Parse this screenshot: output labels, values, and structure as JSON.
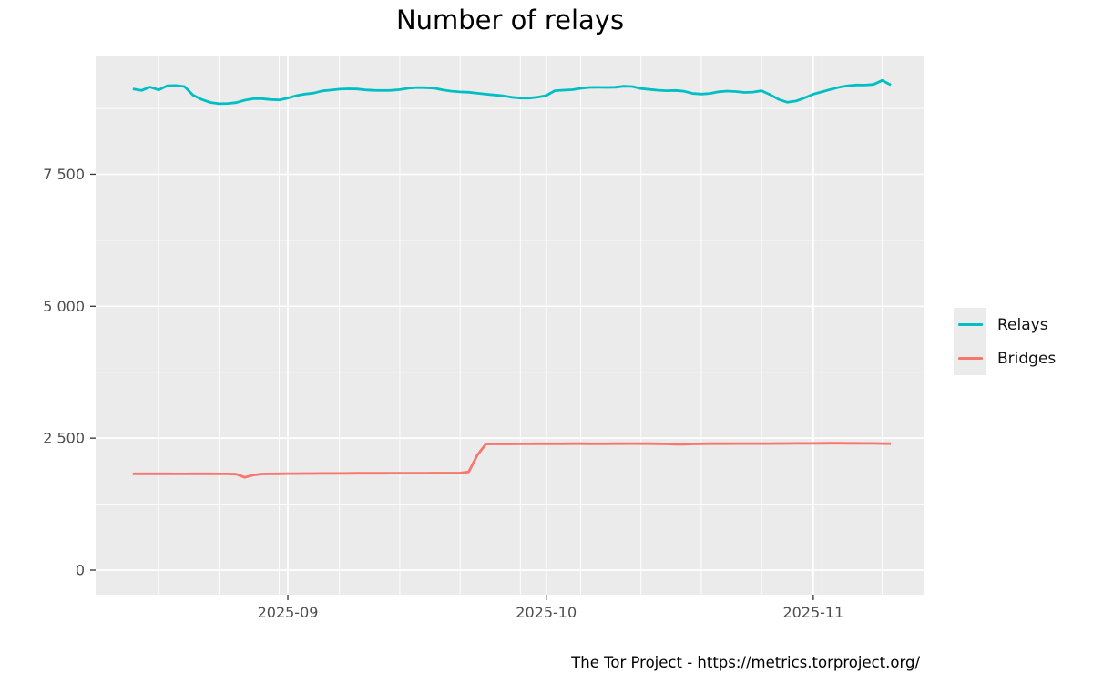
{
  "chart_data": {
    "type": "line",
    "title": "Number of relays",
    "caption": "The Tor Project - https://metrics.torproject.org/",
    "x_dates": {
      "start": "2025-08-14",
      "end": "2025-11-10",
      "interval": "1 day",
      "count": 89
    },
    "series": [
      {
        "name": "Relays",
        "color": "#00BFC4",
        "values": [
          9120,
          9090,
          9155,
          9100,
          9180,
          9183,
          9165,
          9000,
          8920,
          8862,
          8838,
          8843,
          8860,
          8906,
          8934,
          8935,
          8918,
          8911,
          8946,
          8992,
          9022,
          9040,
          9082,
          9098,
          9114,
          9122,
          9118,
          9101,
          9093,
          9090,
          9092,
          9106,
          9131,
          9145,
          9143,
          9133,
          9101,
          9076,
          9063,
          9056,
          9037,
          9020,
          9005,
          8988,
          8961,
          8946,
          8946,
          8963,
          8993,
          9085,
          9095,
          9105,
          9130,
          9148,
          9149,
          9147,
          9151,
          9170,
          9165,
          9126,
          9110,
          9094,
          9086,
          9090,
          9075,
          9034,
          9022,
          9034,
          9065,
          9078,
          9070,
          9052,
          9060,
          9085,
          9010,
          8920,
          8866,
          8890,
          8950,
          9020,
          9062,
          9110,
          9150,
          9181,
          9194,
          9193,
          9205,
          9280,
          9195
        ]
      },
      {
        "name": "Bridges",
        "color": "#F8766D",
        "values": [
          1824,
          1824,
          1825,
          1825,
          1824,
          1823,
          1823,
          1824,
          1825,
          1824,
          1823,
          1822,
          1818,
          1757,
          1800,
          1820,
          1823,
          1825,
          1827,
          1828,
          1829,
          1830,
          1831,
          1832,
          1832,
          1833,
          1834,
          1834,
          1835,
          1835,
          1836,
          1836,
          1836,
          1837,
          1837,
          1838,
          1838,
          1838,
          1840,
          1860,
          2180,
          2388,
          2390,
          2391,
          2391,
          2392,
          2392,
          2393,
          2393,
          2394,
          2394,
          2395,
          2395,
          2394,
          2394,
          2393,
          2395,
          2396,
          2397,
          2396,
          2395,
          2394,
          2390,
          2385,
          2386,
          2390,
          2393,
          2395,
          2396,
          2396,
          2397,
          2397,
          2398,
          2398,
          2398,
          2399,
          2399,
          2400,
          2400,
          2400,
          2402,
          2404,
          2404,
          2403,
          2402,
          2401,
          2400,
          2398,
          2396
        ]
      }
    ],
    "x_axis": {
      "tick_labels": [
        "2025-09",
        "2025-10",
        "2025-11"
      ],
      "major_tick_indices": [
        18,
        48,
        79
      ],
      "minor_tick_indices": [
        3,
        10,
        17,
        24,
        31,
        38,
        45,
        52,
        59,
        66,
        73,
        80,
        87
      ]
    },
    "y_axis": {
      "tick_labels": [
        "0",
        "2 500",
        "5 000",
        "7 500"
      ],
      "tick_values": [
        0,
        2500,
        5000,
        7500
      ],
      "minor_values": [
        1250,
        3750,
        6250,
        8750
      ],
      "ylim": [
        -466,
        9735
      ],
      "grid": "on"
    },
    "legend": {
      "position": "right"
    },
    "colors": {
      "panel_bg": "#EBEBEB",
      "grid": "#FFFFFF",
      "axis_text": "#4D4D4D",
      "tick_mark": "#333333",
      "title_text": "#000000"
    }
  }
}
